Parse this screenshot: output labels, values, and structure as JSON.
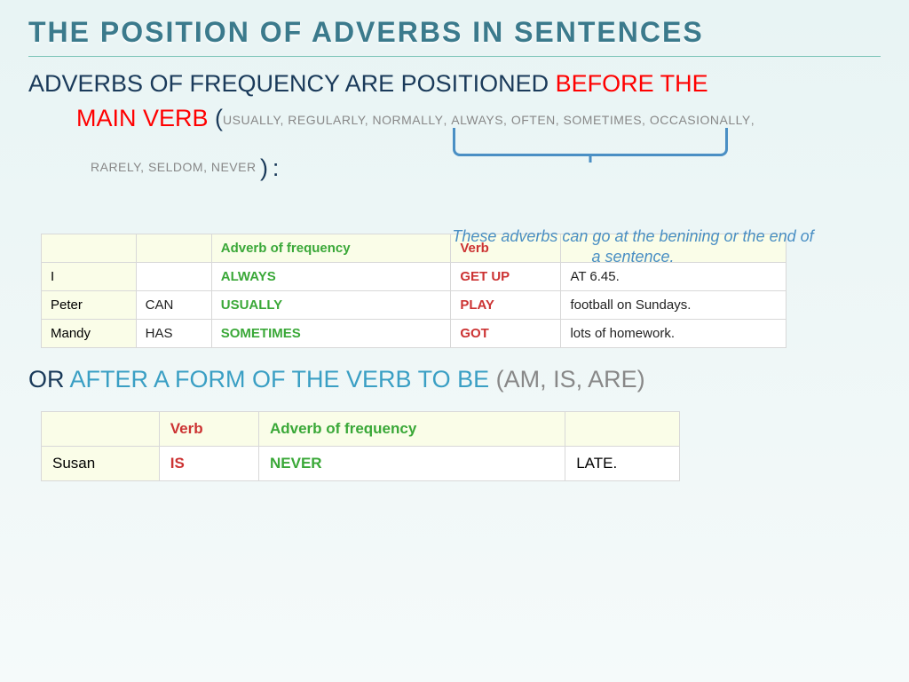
{
  "title": "THE POSITION OF ADVERBS IN SENTENCES",
  "intro": {
    "lead": "ADVERBS OF FREQUENCY ARE POSITIONED ",
    "highlight": "BEFORE THE"
  },
  "mainverb": {
    "highlight": "MAIN VERB",
    "paren_plain1": "USUALLY, REGULARLY, NORMALLY",
    "paren_pink": "ALWAYS, OFTEN, SOMETIMES, OCCASIONALLY",
    "paren_plain2": "RARELY, SELDOM, NEVER",
    "colon": " :"
  },
  "callout": "These adverbs can go at the benining or the end of a sentence.",
  "table1": {
    "headers": {
      "c1": "",
      "c2": "",
      "c3": "Adverb of frequency",
      "c4": "Verb",
      "c5": ""
    },
    "rows": [
      {
        "subj": "I",
        "aux": "",
        "adv": "ALWAYS",
        "verb": "GET UP",
        "rest": "AT 6.45."
      },
      {
        "subj": "Peter",
        "aux": "CAN",
        "adv": "USUALLY",
        "verb": "PLAY",
        "rest": "football on Sundays."
      },
      {
        "subj": "Mandy",
        "aux": "HAS",
        "adv": "SOMETIMES",
        "verb": "GOT",
        "rest": "lots of homework."
      }
    ]
  },
  "after": {
    "lead": "OR ",
    "blue": "AFTER A FORM OF THE VERB TO BE",
    "gray": " (AM, IS, ARE)"
  },
  "table2": {
    "headers": {
      "c1": "",
      "c2": "Verb",
      "c3": "Adverb of frequency",
      "c4": ""
    },
    "row": {
      "subj": "Susan",
      "verb": "IS",
      "adv": "NEVER",
      "rest": "LATE."
    }
  }
}
